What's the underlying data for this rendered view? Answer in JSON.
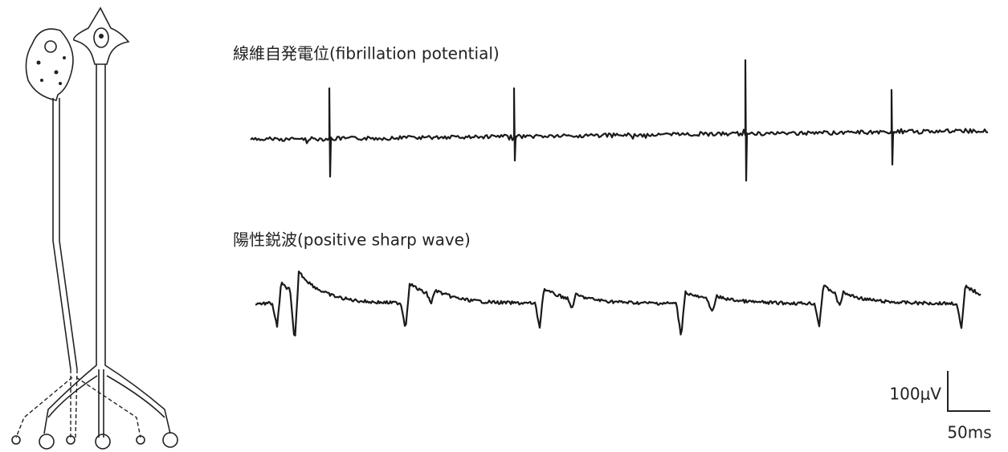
{
  "labels": {
    "fibrillation": "線維自発電位(fibrillation potential)",
    "positive_sharp_wave": "陽性鋭波(positive sharp wave)"
  },
  "scale_bar": {
    "amplitude": "100μV",
    "time": "50ms"
  }
}
